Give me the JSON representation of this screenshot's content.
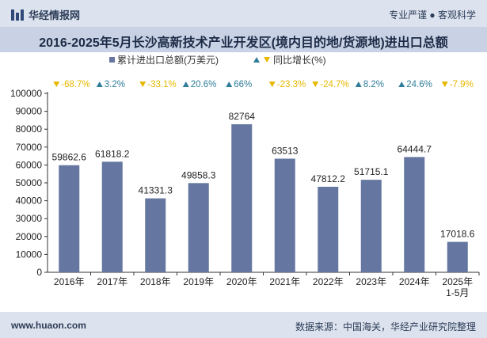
{
  "header": {
    "brand": "华经情报网",
    "tagline": "专业严谨 ● 客观科学"
  },
  "footer": {
    "url": "www.huaon.com",
    "source": "数据来源：中国海关，华经产业研究院整理"
  },
  "colors": {
    "bar": "#6577a0",
    "up": "#2f7d9a",
    "down": "#e6b800",
    "axis": "#333333"
  },
  "chart_data": {
    "type": "bar",
    "title": "2016-2025年5月长沙高新技术产业开发区(境内目的地/货源地)进出口总额",
    "categories": [
      "2016年",
      "2017年",
      "2018年",
      "2019年",
      "2020年",
      "2021年",
      "2022年",
      "2023年",
      "2024年",
      "2025年\n1-5月"
    ],
    "series": [
      {
        "name": "累计进出口总额(万美元)",
        "values": [
          59862.6,
          61818.2,
          41331.3,
          49858.3,
          82764,
          63513,
          47812.2,
          51715.1,
          64444.7,
          17018.6
        ],
        "labels": [
          "59862.6",
          "61818.2",
          "41331.3",
          "49858.3",
          "82764",
          "63513",
          "47812.2",
          "51715.1",
          "64444.7",
          "17018.6"
        ]
      },
      {
        "name": "同比增长(%)",
        "values": [
          -68.7,
          3.2,
          -33.1,
          20.6,
          66,
          -23.3,
          -24.7,
          8.2,
          24.6,
          -7.9
        ],
        "labels": [
          "-68.7%",
          "3.2%",
          "-33.1%",
          "20.6%",
          "66%",
          "-23.3%",
          "-24.7%",
          "8.2%",
          "24.6%",
          "-7.9%"
        ]
      }
    ],
    "ylim": [
      0,
      100000
    ],
    "yticks": [
      0,
      10000,
      20000,
      30000,
      40000,
      50000,
      60000,
      70000,
      80000,
      90000,
      100000
    ],
    "xlabel": "",
    "ylabel": "",
    "legend": "top"
  }
}
